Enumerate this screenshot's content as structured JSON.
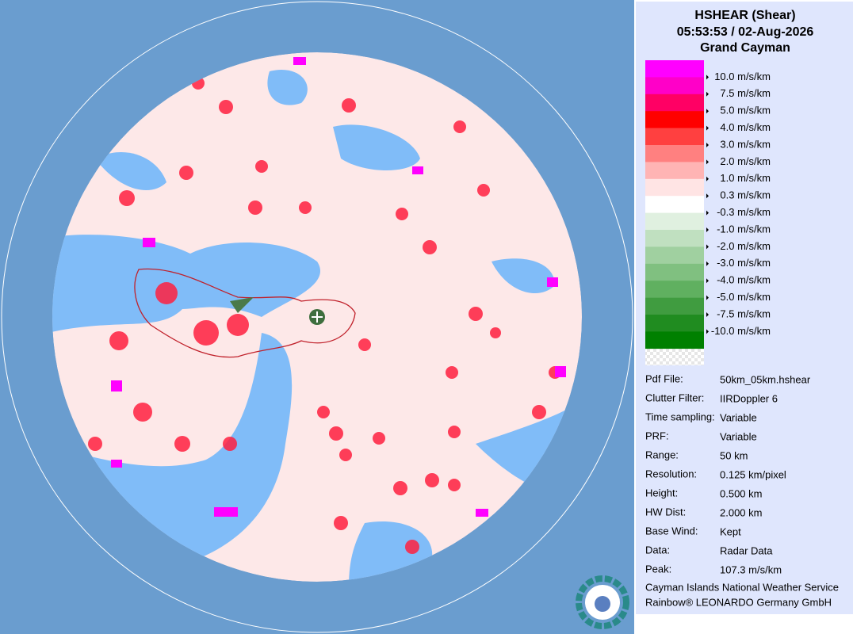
{
  "header": {
    "title": "HSHEAR (Shear)",
    "time": "05:53:53 / 02-Aug-2026",
    "location": "Grand Cayman"
  },
  "legend": {
    "colors": [
      "#ff00ff",
      "#ff00c8",
      "#ff0064",
      "#ff0000",
      "#ff4040",
      "#ff8080",
      "#ffb4b4",
      "#ffe4e4",
      "#ffffff",
      "#e0f0e0",
      "#c0e0c0",
      "#a0d0a0",
      "#80c080",
      "#60b060",
      "#409c40",
      "#208c20",
      "#008000"
    ],
    "labels": [
      "10.0 m/s/km",
      "7.5 m/s/km",
      "5.0 m/s/km",
      "4.0 m/s/km",
      "3.0 m/s/km",
      "2.0 m/s/km",
      "1.0 m/s/km",
      "0.3 m/s/km",
      "-0.3 m/s/km",
      "-1.0 m/s/km",
      "-2.0 m/s/km",
      "-3.0 m/s/km",
      "-4.0 m/s/km",
      "-5.0 m/s/km",
      "-7.5 m/s/km",
      "-10.0 m/s/km"
    ]
  },
  "info": [
    [
      "Pdf File:",
      "50km_05km.hshear"
    ],
    [
      "Clutter Filter:",
      "IIRDoppler 6"
    ],
    [
      "Time sampling:",
      "Variable"
    ],
    [
      "PRF:",
      "Variable"
    ],
    [
      "Range:",
      "50 km"
    ],
    [
      "Resolution:",
      "0.125 km/pixel"
    ],
    [
      "Height:",
      "0.500 km"
    ],
    [
      "HW Dist:",
      "2.000 km"
    ],
    [
      "Base Wind:",
      "Kept"
    ],
    [
      "Data:",
      "Radar Data"
    ],
    [
      "Peak:",
      "107.3 m/s/km"
    ]
  ],
  "footer": [
    "Cayman Islands National Weather Service",
    "Rainbow® LEONARDO Germany GmbH"
  ]
}
